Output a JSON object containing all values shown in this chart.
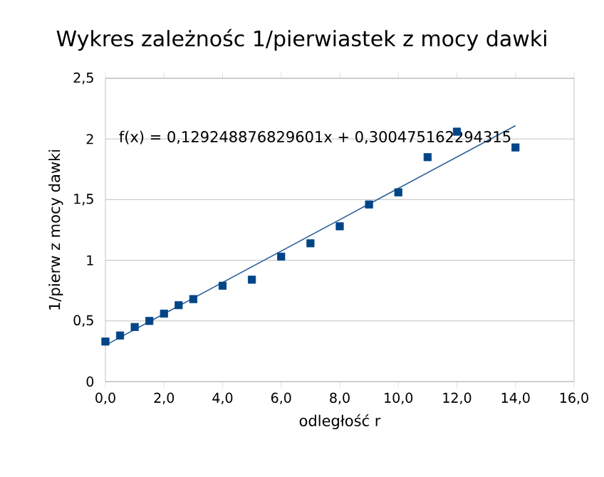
{
  "chart_data": {
    "type": "scatter",
    "title": "Wykres zależnośc 1/pierwiastek z mocy dawki",
    "xlabel": "odległość r",
    "ylabel": "1/pierw z mocy dawki",
    "series": [
      {
        "color": "#004586",
        "marker": "square",
        "x": [
          0,
          0.5,
          1,
          1.5,
          2,
          2.5,
          3,
          4,
          5,
          6,
          7,
          8,
          9,
          10,
          11,
          12,
          14
        ],
        "values": [
          0.33,
          0.38,
          0.45,
          0.5,
          0.56,
          0.63,
          0.68,
          0.79,
          0.84,
          1.03,
          1.14,
          1.28,
          1.46,
          1.56,
          1.85,
          2.06,
          1.93
        ]
      },
      {
        "type": "line",
        "color": "#2a6099",
        "x": [
          0,
          14
        ],
        "values": [
          0.3,
          2.11
        ]
      }
    ],
    "annotations": [
      "f(x) = 0,129248876829601x + 0,300475162294315"
    ],
    "xlim": [
      0,
      16
    ],
    "ylim": [
      0,
      2.5
    ],
    "xticks": [
      {
        "value": 0,
        "label": "0,0"
      },
      {
        "value": 2,
        "label": "2,0"
      },
      {
        "value": 4,
        "label": "4,0"
      },
      {
        "value": 6,
        "label": "6,0"
      },
      {
        "value": 8,
        "label": "8,0"
      },
      {
        "value": 10,
        "label": "10,0"
      },
      {
        "value": 12,
        "label": "12,0"
      },
      {
        "value": 14,
        "label": "14,0"
      },
      {
        "value": 16,
        "label": "16,0"
      }
    ],
    "yticks": [
      0,
      {
        "value": 0.5,
        "label": "0,5"
      },
      1,
      {
        "value": 1.5,
        "label": "1,5"
      },
      2,
      {
        "value": 2.5,
        "label": "2,5"
      }
    ],
    "grid": "y"
  }
}
